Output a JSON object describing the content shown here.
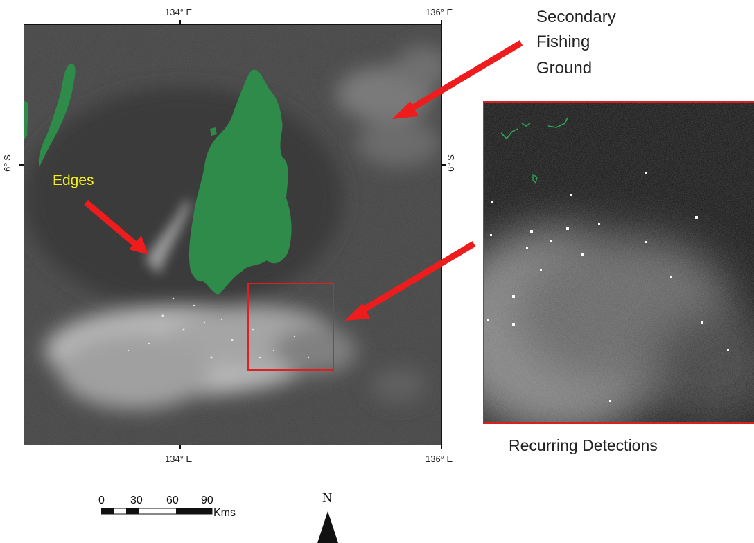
{
  "map": {
    "lon_top_left": "134° E",
    "lon_top_right": "136° E",
    "lon_bottom_left": "134° E",
    "lon_bottom_right": "136° E",
    "lat_left": "6° S",
    "lat_right": "6° S"
  },
  "annotations": {
    "secondary_line1": "Secondary",
    "secondary_line2": "Fishing",
    "secondary_line3": "Ground",
    "edges": "Edges",
    "recurring": "Recurring Detections"
  },
  "scalebar": {
    "ticks": [
      "0",
      "30",
      "60",
      "90"
    ],
    "unit": "Kms"
  },
  "north_arrow": {
    "letter": "N"
  },
  "colors": {
    "land": "#2e8b4a",
    "arrow": "#ee1c1c",
    "highlight": "#e02020",
    "edges_text": "#f5ef1a",
    "sea": "#444444"
  }
}
